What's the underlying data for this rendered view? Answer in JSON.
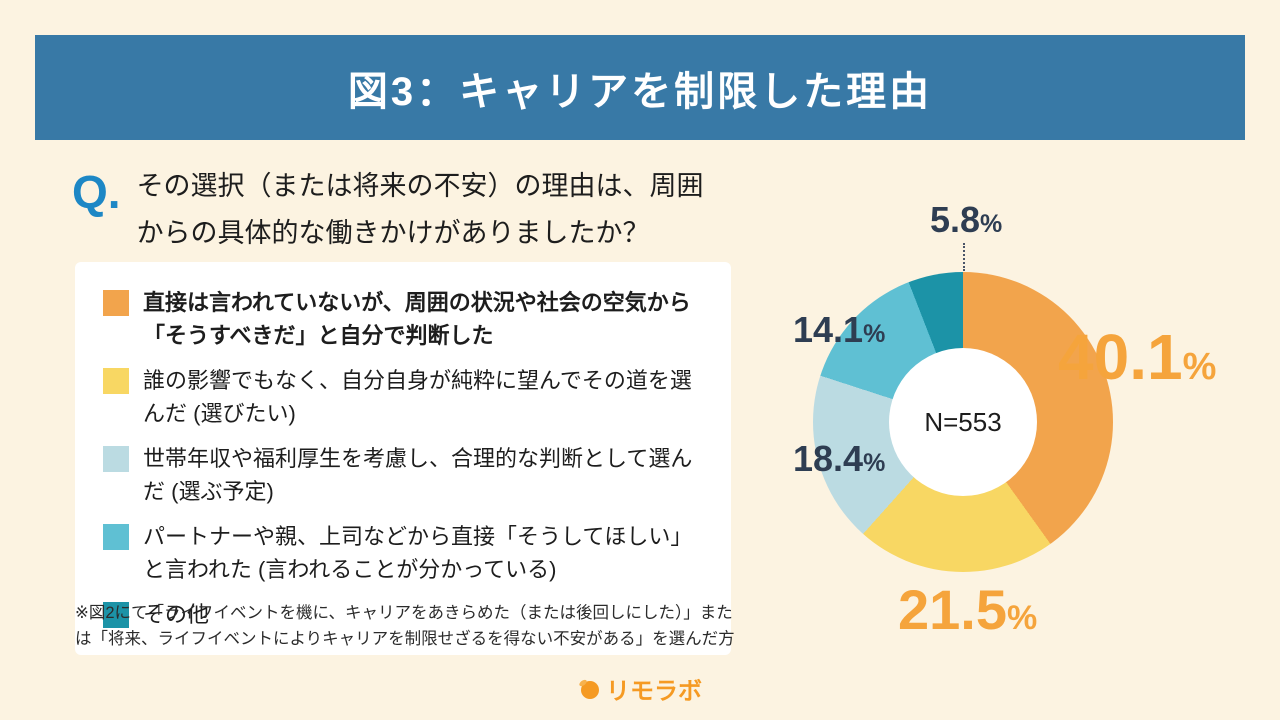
{
  "page": {
    "header": {
      "title": "図3：キャリアを制限した理由",
      "bg": "#3879A6",
      "fg": "#ffffff"
    },
    "question": {
      "prefix": "Q.",
      "line1": "その選択（または将来の不安）の理由は、周囲",
      "line2": "からの具体的な働きかけがありましたか？"
    },
    "footnote": "※図2にて「ライフイベントを機に、キャリアをあきらめた（または後回しにした）」または「将来、ライフイベントによりキャリアを制限せざるを得ない不安がある」を選んだ方",
    "logo": "リモラボ",
    "accent_orange": "#F5A43C",
    "accent_navy": "#2E3D52",
    "background": "#FCF3E1"
  },
  "chart_data": {
    "type": "pie",
    "donut": true,
    "title": "図3：キャリアを制限した理由",
    "center_label": "N=553",
    "legend_position": "left",
    "series": [
      {
        "label": "直接は言われていないが、周囲の状況や社会の空気から「そうすべきだ」と自分で判断した",
        "value": 40.1,
        "color": "#F2A44C"
      },
      {
        "label": "誰の影響でもなく、自分自身が純粋に望んでその道を選んだ (選びたい)",
        "value": 21.5,
        "color": "#F8D763"
      },
      {
        "label": "世帯年収や福利厚生を考慮し、合理的な判断として選んだ (選ぶ予定)",
        "value": 18.4,
        "color": "#BBDBE2"
      },
      {
        "label": "パートナーや親、上司などから直接「そうしてほしい」と言われた (言われることが分かっている)",
        "value": 14.1,
        "color": "#5FC0D3"
      },
      {
        "label": "その他",
        "value": 5.8,
        "color": "#1C93A7"
      }
    ]
  }
}
